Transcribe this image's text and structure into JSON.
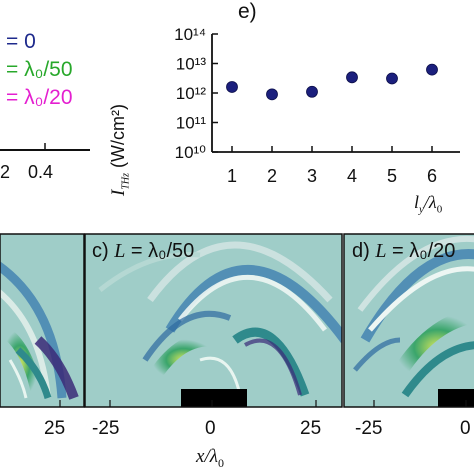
{
  "colors": {
    "field_bg": "#9fcdc8",
    "marker": "#1b1f7d",
    "legend_blue": "#1e2a8c",
    "legend_green": "#28a82b",
    "legend_magenta": "#e41fd0",
    "target_block": "#000000"
  },
  "legend": {
    "entries": [
      "= 0",
      "= λ₀/50",
      "= λ₀/20"
    ],
    "colors": [
      "#1e2a8c",
      "#28a82b",
      "#e41fd0"
    ]
  },
  "left_top_axis": {
    "tick_labels": [
      "2",
      "0.4"
    ]
  },
  "chart_data": [
    {
      "type": "scatter",
      "panel_label": "e)",
      "x": [
        1,
        2,
        3,
        4,
        5,
        6
      ],
      "y": [
        1600000000000.0,
        900000000000.0,
        1100000000000.0,
        3400000000000.0,
        3100000000000.0,
        6200000000000.0
      ],
      "xlabel": "l_y/λ_0",
      "ylabel": "I_THz (W/cm²)",
      "yscale": "log",
      "ylim": [
        10000000000.0,
        100000000000000.0
      ],
      "xticks": [
        "1",
        "2",
        "3",
        "4",
        "5",
        "6"
      ],
      "yticks": [
        "10¹⁰",
        "10¹¹",
        "10¹²",
        "10¹³",
        "10¹⁴"
      ],
      "marker_color": "#1b1f7d"
    },
    {
      "type": "heatmap",
      "panel_label": "c) L = λ₀/50",
      "xlabel": "x/λ₀",
      "xticks": [
        "-25",
        "0",
        "25"
      ]
    },
    {
      "type": "heatmap",
      "panel_label": "d) L = λ₀/20",
      "xticks": [
        "-25",
        "0"
      ]
    },
    {
      "type": "heatmap",
      "panel_label": "",
      "xticks": [
        "25"
      ]
    }
  ],
  "text": {
    "scatter_ylabel_main": "I",
    "scatter_ylabel_sub": "THz",
    "scatter_ylabel_unit": "(W/cm²)",
    "scatter_xlabel_main": "l",
    "scatter_xlabel_sub": "y",
    "scatter_xlabel_rest": "/λ",
    "scatter_xlabel_sub2": "0",
    "scatter_panel": "e)",
    "panel_c_prefix": "c)",
    "panel_c_var": "L",
    "panel_c_eq": "= λ₀/50",
    "panel_d_prefix": "d)",
    "panel_d_var": "L",
    "panel_d_eq": "= λ₀/20",
    "heat_xlabel_var": "x",
    "heat_xlabel_rest": "/λ",
    "heat_xlabel_sub": "0"
  }
}
